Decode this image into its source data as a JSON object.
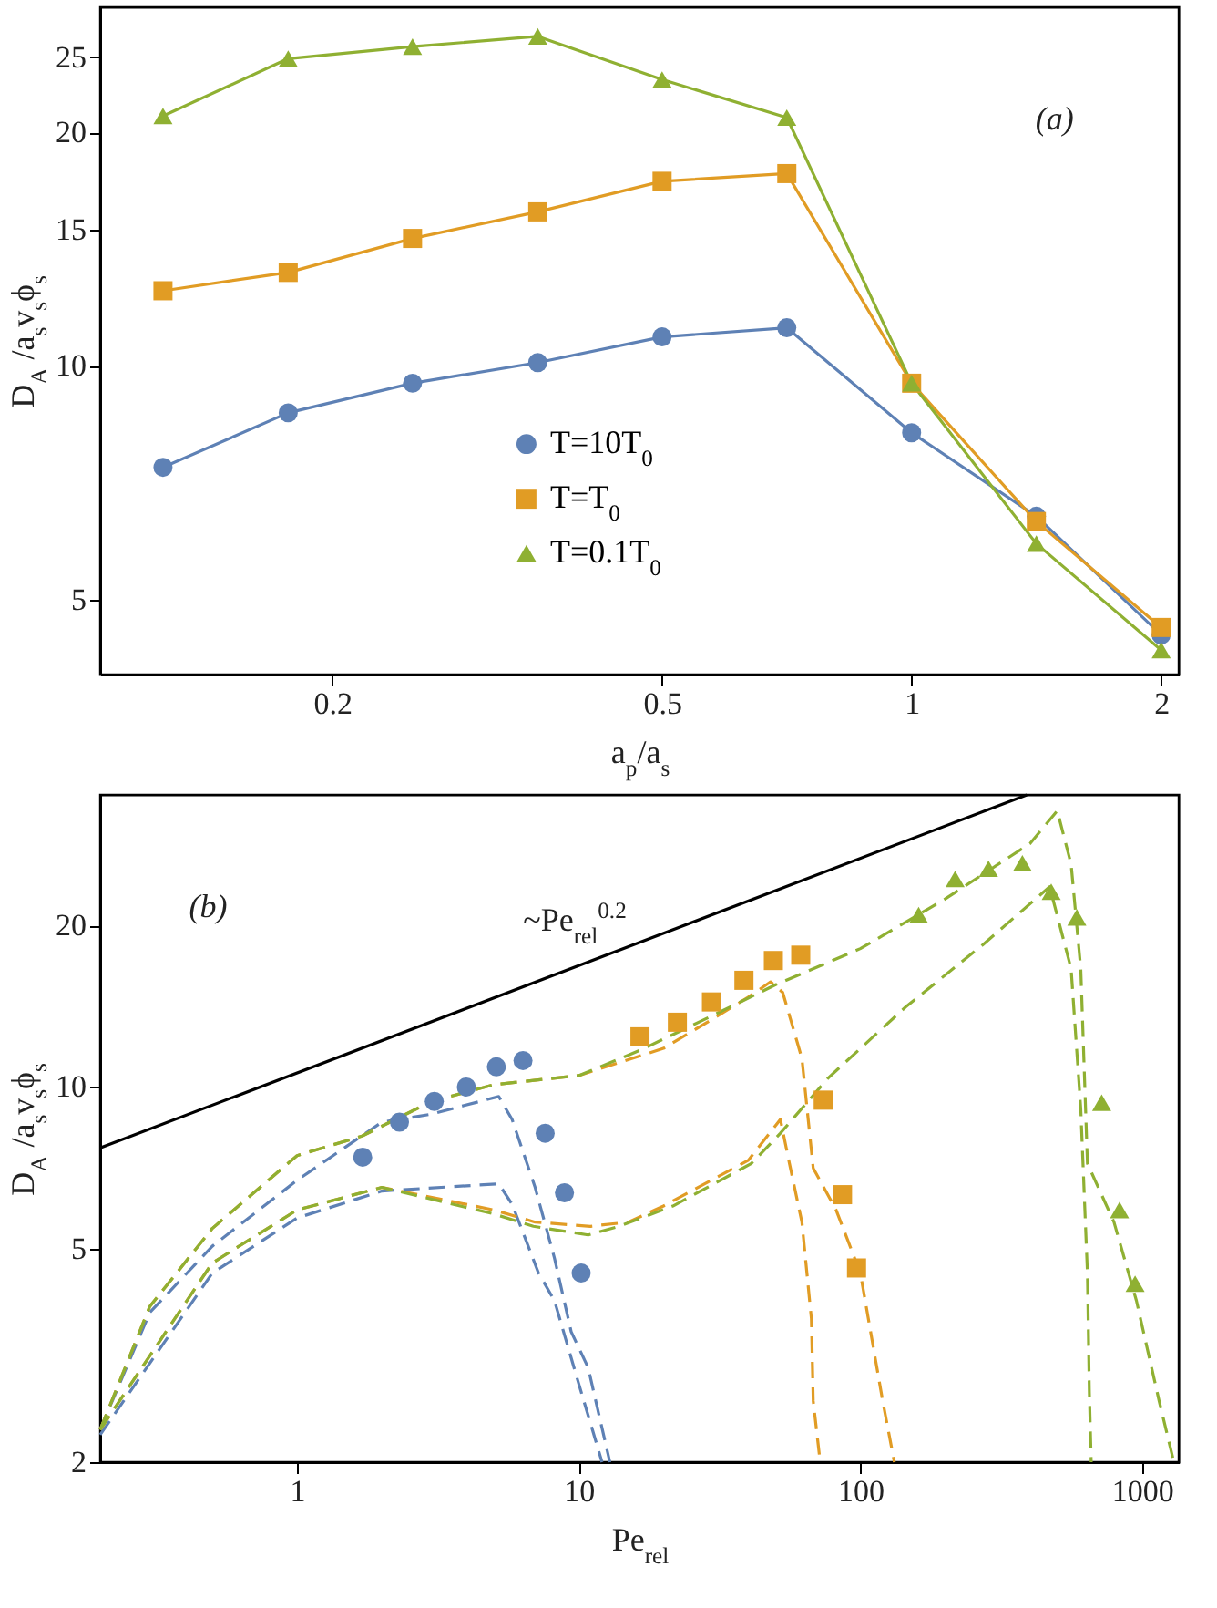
{
  "chart_data": [
    {
      "type": "line",
      "xlabel": "a$_{p}$/a$_{s}$",
      "ylabel": "D$_{A}$ /a$_{s}$v$_{s}$ϕ$_{s}$",
      "log": "xy",
      "xlim": [
        0.105,
        2.1
      ],
      "xticks": [
        0.2,
        0.5,
        1,
        2
      ],
      "ylim": [
        4,
        29
      ],
      "yticks": [
        5,
        10,
        15,
        20,
        25
      ],
      "legend": "bottom",
      "annotations": [
        "(a)"
      ],
      "x": [
        0.125,
        0.177,
        0.25,
        0.354,
        0.5,
        0.707,
        1,
        1.414,
        2
      ],
      "series": [
        {
          "name": "T=10T$_{0}$",
          "color": "#5e81b5",
          "marker": "circle",
          "values": [
            7.4,
            8.7,
            9.5,
            10.1,
            10.9,
            11.2,
            8.2,
            6.4,
            4.5
          ]
        },
        {
          "name": "T=T$_{0}$",
          "color": "#e19c24",
          "marker": "square",
          "values": [
            12.5,
            13.2,
            14.6,
            15.8,
            17.3,
            17.7,
            9.5,
            6.3,
            4.6
          ]
        },
        {
          "name": "T=0.1T$_{0}$",
          "color": "#8fb032",
          "marker": "triangle",
          "values": [
            21.0,
            24.9,
            25.8,
            26.6,
            23.4,
            20.9,
            9.5,
            5.9,
            4.3
          ]
        }
      ]
    },
    {
      "type": "line",
      "xlabel": "Pe$_{rel}$",
      "ylabel": "D$_{A}$ /a$_{s}$v$_{s}$ϕ$_{s}$",
      "log": "xy",
      "xlim": [
        0.2,
        1350
      ],
      "xticks": [
        1,
        10,
        100,
        1000
      ],
      "ylim": [
        2,
        35
      ],
      "yticks": [
        2,
        5,
        10,
        20
      ],
      "annotations": [
        "(b)",
        "~Pe$_{rel}$$^{0.2}$"
      ],
      "series": [
        {
          "color": "#000000",
          "line_style": "solid",
          "x": [
            0.2,
            390
          ],
          "values": [
            7.7,
            35
          ]
        },
        {
          "type": "line",
          "color": "#5e81b5",
          "line_style": "dashed",
          "x": [
            0.2,
            0.3,
            0.5,
            1,
            2,
            3,
            5.2,
            5.8,
            7,
            8.2,
            9.4,
            10.8,
            12.9
          ],
          "values": [
            2.3,
            3.8,
            5.05,
            6.7,
            8.6,
            8.9,
            9.6,
            8.7,
            6.5,
            4.8,
            3.5,
            3.0,
            2.0
          ]
        },
        {
          "type": "line",
          "color": "#5e81b5",
          "line_style": "dashed",
          "x": [
            0.2,
            0.5,
            1,
            2,
            5.2,
            5.8,
            7.2,
            8.2,
            9.9,
            12.1
          ],
          "values": [
            2.25,
            4.5,
            5.7,
            6.4,
            6.6,
            6.05,
            4.5,
            4.0,
            2.85,
            2.0
          ]
        },
        {
          "type": "line",
          "color": "#e19c24",
          "line_style": "dashed",
          "x": [
            0.2,
            0.3,
            0.5,
            1,
            1.7,
            3,
            5,
            10,
            20,
            30,
            40,
            48,
            53,
            62,
            68,
            82,
            100,
            120,
            132
          ],
          "values": [
            2.3,
            3.9,
            5.45,
            7.45,
            8.1,
            9.4,
            10.1,
            10.5,
            11.8,
            13.4,
            14.7,
            15.7,
            15.0,
            11.3,
            7.06,
            5.9,
            4.5,
            2.6,
            2.0
          ]
        },
        {
          "type": "line",
          "color": "#e19c24",
          "line_style": "dashed",
          "x": [
            0.2,
            0.5,
            1,
            2,
            5,
            7,
            11,
            15,
            20,
            40,
            52,
            56,
            62,
            67,
            68,
            72
          ],
          "values": [
            2.3,
            4.7,
            5.9,
            6.5,
            5.9,
            5.6,
            5.5,
            5.6,
            6.0,
            7.3,
            8.7,
            7.2,
            5.6,
            3.7,
            2.6,
            2.0
          ]
        },
        {
          "type": "line",
          "color": "#8fb032",
          "line_style": "dashed",
          "x": [
            0.2,
            0.3,
            0.5,
            1,
            1.7,
            3,
            5,
            10,
            16.5,
            30,
            50,
            100,
            200,
            400,
            500,
            560,
            606,
            640,
            795,
            955,
            1150,
            1297
          ],
          "values": [
            2.3,
            3.9,
            5.45,
            7.45,
            8.1,
            9.4,
            10.1,
            10.5,
            11.7,
            13.6,
            15.5,
            18.1,
            22.4,
            28.4,
            32.7,
            26,
            16.6,
            7.2,
            5.6,
            4.0,
            2.6,
            2.0
          ]
        },
        {
          "type": "line",
          "color": "#8fb032",
          "line_style": "dashed",
          "x": [
            0.2,
            0.5,
            1,
            2,
            5,
            6.9,
            10.8,
            13.9,
            21.6,
            41,
            52,
            77,
            145,
            272,
            470,
            560,
            606,
            640,
            650,
            660
          ],
          "values": [
            2.3,
            4.7,
            5.9,
            6.5,
            5.8,
            5.5,
            5.3,
            5.5,
            6.0,
            7.2,
            8.2,
            10.4,
            14.1,
            18.4,
            23.6,
            16.6,
            9.1,
            4.5,
            2.7,
            2.0
          ]
        },
        {
          "type": "scatter",
          "color": "#5e81b5",
          "marker": "circle",
          "x": [
            1.71,
            2.31,
            3.07,
            3.99,
            5.1,
            6.34,
            7.6,
            8.9,
            10.2
          ],
          "values": [
            7.4,
            8.6,
            9.4,
            10,
            10.9,
            11.2,
            8.2,
            6.35,
            4.5
          ]
        },
        {
          "type": "scatter",
          "color": "#e19c24",
          "marker": "square",
          "x": [
            16.5,
            22.4,
            29.6,
            38.6,
            49.1,
            61.4,
            73.8,
            86.4,
            96.9
          ],
          "values": [
            12.4,
            13.2,
            14.4,
            15.8,
            17.2,
            17.6,
            9.45,
            6.3,
            4.6
          ]
        },
        {
          "type": "scatter",
          "color": "#8fb032",
          "marker": "triangle",
          "x": [
            161,
            217,
            285,
            376,
            476,
            587,
            719,
            832,
            945
          ],
          "values": [
            20.9,
            24.4,
            25.5,
            26.1,
            23.1,
            20.7,
            9.35,
            5.9,
            4.3
          ]
        }
      ]
    }
  ]
}
